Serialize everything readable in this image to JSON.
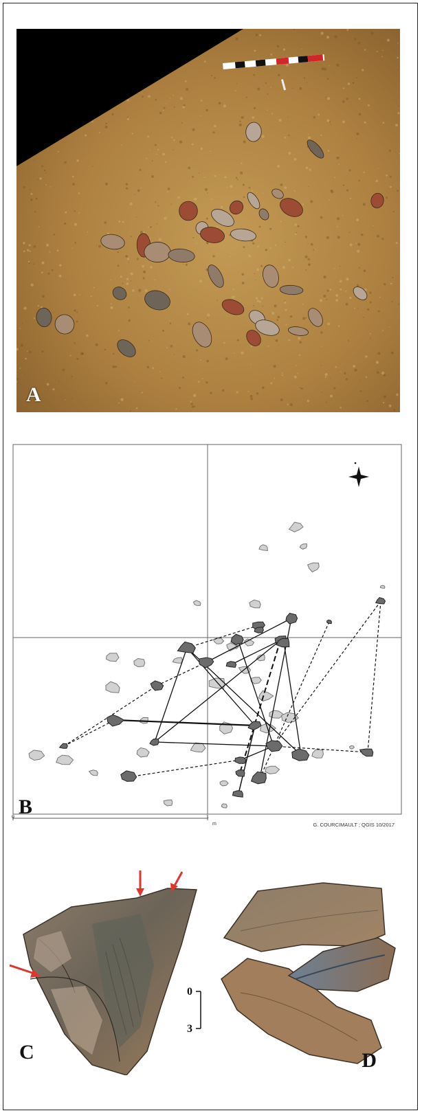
{
  "panels": {
    "a": {
      "letter": "A"
    },
    "b": {
      "letter": "B",
      "scale_zero": "0",
      "scale_one": "1",
      "scale_unit": "m",
      "credit": "G. COURCIMAULT ; QGIS 10/2017"
    },
    "c": {
      "letter": "C",
      "scale_top": "0",
      "scale_bottom": "3"
    },
    "d": {
      "letter": "D"
    }
  },
  "colors": {
    "soil": "#b48746",
    "flint": "#7a6a58",
    "fragment_dark": "#6e6e6e",
    "fragment_light": "#cfcfcf",
    "arrow": "#e0352b"
  }
}
